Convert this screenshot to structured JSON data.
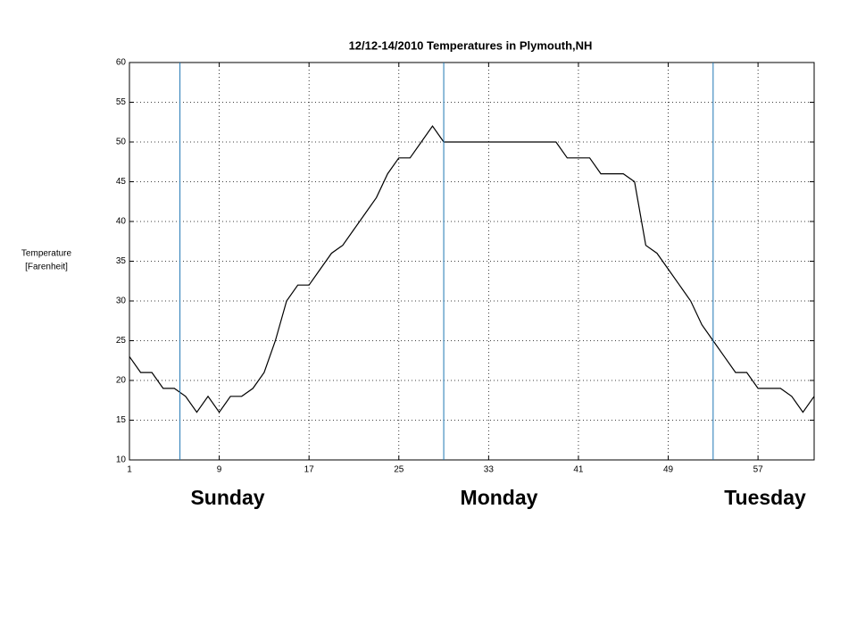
{
  "chart_data": {
    "type": "line",
    "title": "12/12-14/2010 Temperatures in Plymouth,NH",
    "ylabel": [
      "Temperature",
      "[Farenheit]"
    ],
    "x": [
      1,
      2,
      3,
      4,
      5,
      6,
      7,
      8,
      9,
      10,
      11,
      12,
      13,
      14,
      15,
      16,
      17,
      18,
      19,
      20,
      21,
      22,
      23,
      24,
      25,
      26,
      27,
      28,
      29,
      30,
      31,
      32,
      33,
      34,
      35,
      36,
      37,
      38,
      39,
      40,
      41,
      42,
      43,
      44,
      45,
      46,
      47,
      48,
      49,
      50,
      51,
      52,
      53,
      54,
      55,
      56,
      57,
      58,
      59,
      60,
      61,
      62
    ],
    "series": [
      {
        "color": "#000000",
        "values": [
          23,
          21,
          21,
          19,
          19,
          18,
          16,
          18,
          16,
          18,
          18,
          19,
          21,
          25,
          30,
          32,
          32,
          34,
          36,
          37,
          39,
          41,
          43,
          46,
          48,
          48,
          50,
          52,
          50,
          50,
          50,
          50,
          50,
          50,
          50,
          50,
          50,
          50,
          50,
          48,
          48,
          48,
          46,
          46,
          46,
          45,
          37,
          36,
          34,
          32,
          30,
          27,
          25,
          23,
          21,
          21,
          19,
          19,
          19,
          18,
          16,
          18
        ]
      }
    ],
    "xlim": [
      1,
      62
    ],
    "ylim": [
      10,
      60
    ],
    "xticks": [
      1,
      9,
      17,
      25,
      33,
      41,
      49,
      57
    ],
    "yticks": [
      10,
      15,
      20,
      25,
      30,
      35,
      40,
      45,
      50,
      55,
      60
    ],
    "grid": true,
    "vlines": {
      "color": "#1f77b4",
      "x": [
        5.5,
        29,
        53
      ]
    },
    "annotations": [
      "Sunday",
      "Monday",
      "Tuesday"
    ]
  }
}
